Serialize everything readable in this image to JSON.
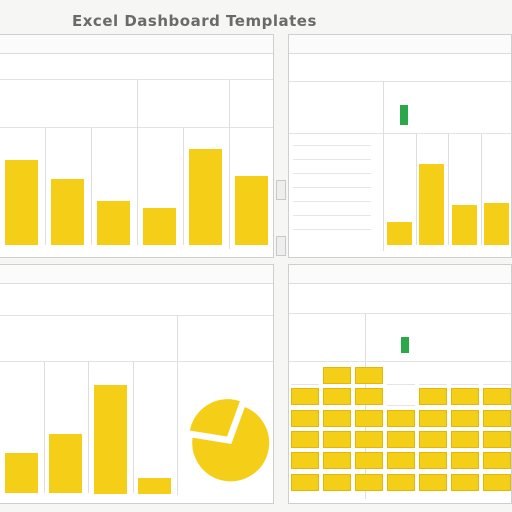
{
  "header": {
    "title": "Excel Dashboard Templates"
  },
  "panels": {
    "top_left": {
      "title": "",
      "labels": [
        "",
        "",
        "",
        ""
      ],
      "chart_data": {
        "type": "bar",
        "categories": [
          "",
          "",
          "",
          "",
          "",
          ""
        ],
        "values": [
          62,
          48,
          32,
          27,
          70,
          50
        ],
        "color": "#f5cf17"
      }
    },
    "top_right": {
      "title": "",
      "labels": [
        "",
        "",
        ""
      ],
      "marker_color": "#2aa84a",
      "chart_data": {
        "type": "bar",
        "categories": [
          "",
          "",
          "",
          ""
        ],
        "values": [
          12,
          43,
          21,
          22
        ],
        "color": "#f5cf17"
      }
    },
    "bottom_left": {
      "title": "",
      "labels": [
        "",
        "",
        "",
        ""
      ],
      "chart_data": [
        {
          "type": "bar",
          "categories": [
            "",
            "",
            "",
            ""
          ],
          "values": [
            26,
            38,
            70,
            10
          ],
          "color": "#f5cf17"
        },
        {
          "type": "pie",
          "categories": [
            "",
            ""
          ],
          "values": [
            72,
            28
          ],
          "color": "#f5cf17"
        }
      ]
    },
    "bottom_right": {
      "title": "",
      "labels": [
        "",
        "",
        ""
      ],
      "marker_color": "#2aa84a",
      "chart_data": {
        "type": "table",
        "rows": 6,
        "columns": 7
      }
    }
  },
  "colors": {
    "accent": "#f5cf17",
    "accent_dark": "#e0b80a",
    "status_green": "#2aa84a",
    "panel_border": "#cfcfcf"
  }
}
